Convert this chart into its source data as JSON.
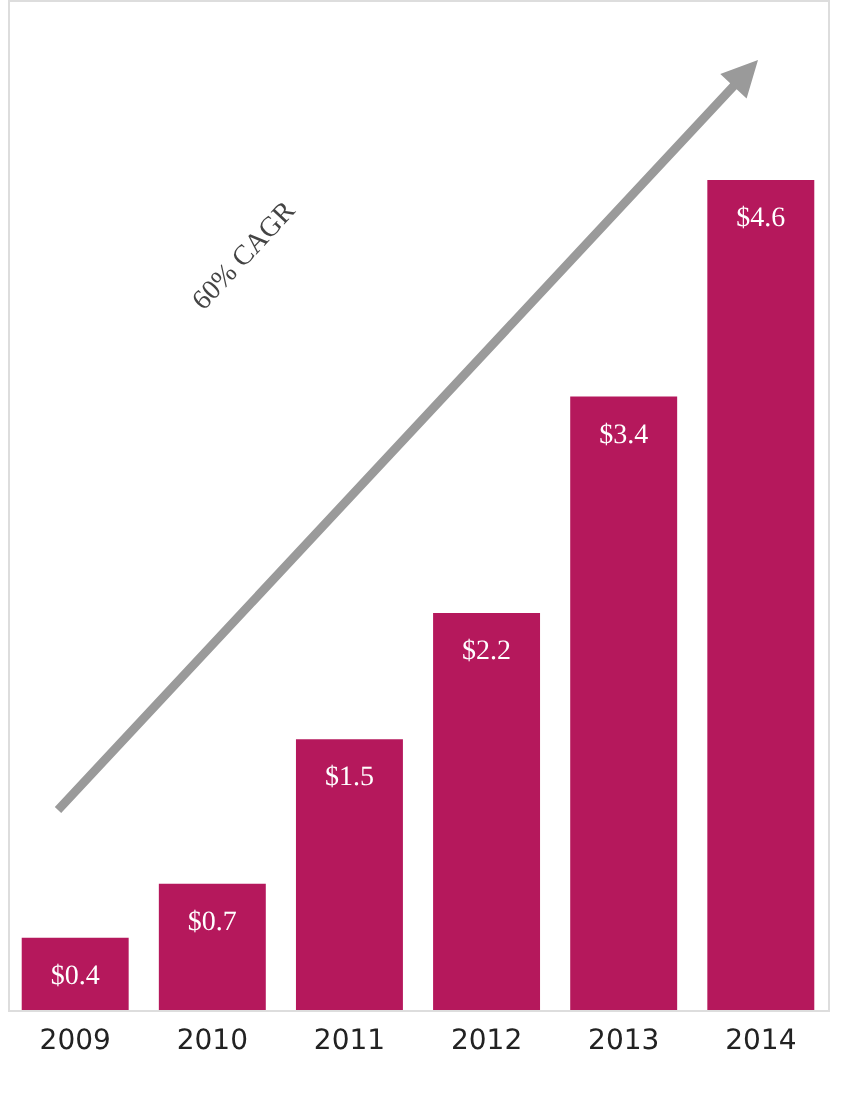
{
  "chart_data": {
    "type": "bar",
    "categories": [
      "2009",
      "2010",
      "2011",
      "2012",
      "2013",
      "2014"
    ],
    "values": [
      0.4,
      0.7,
      1.5,
      2.2,
      3.4,
      4.6
    ],
    "value_labels": [
      "$0.4",
      "$0.7",
      "$1.5",
      "$2.2",
      "$3.4",
      "$4.6"
    ],
    "color": "#b5185c",
    "annotations": [
      "60% CAGR"
    ]
  }
}
